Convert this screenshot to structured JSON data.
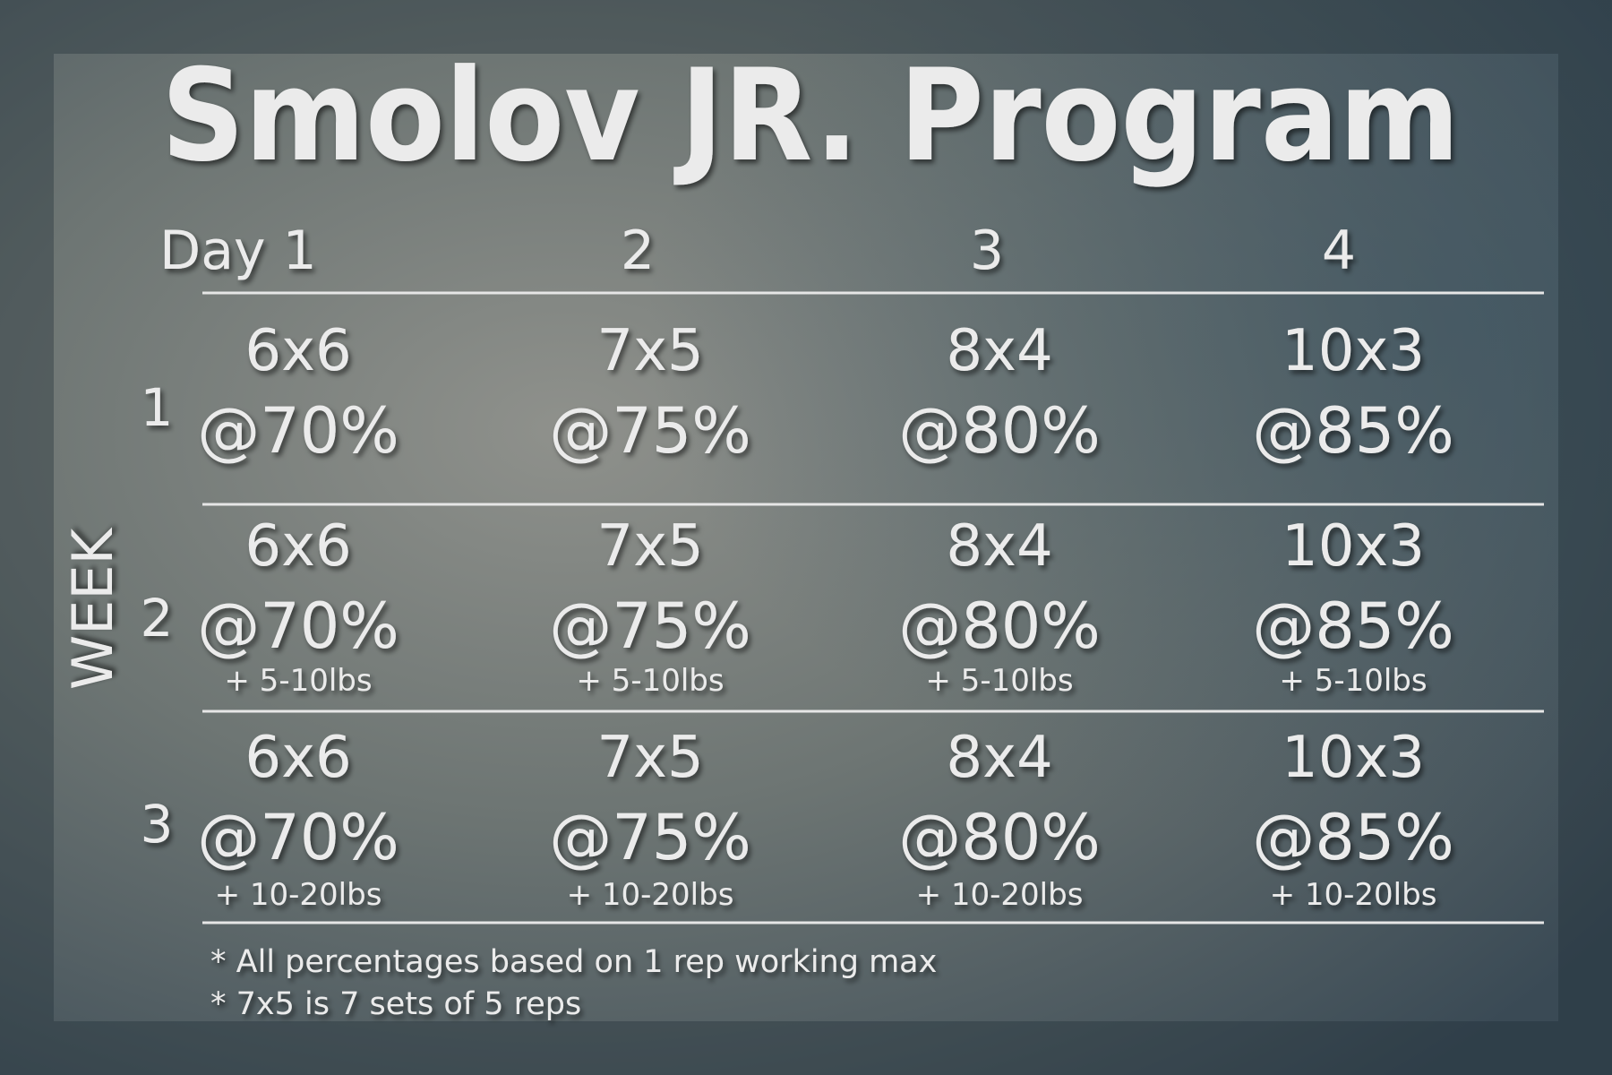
{
  "title": "Smolov JR. Program",
  "header": {
    "days": [
      "Day 1",
      "2",
      "3",
      "4"
    ]
  },
  "axis_label": "WEEK",
  "rows": [
    {
      "week": "1",
      "cells": [
        {
          "sets": "6x6",
          "percent": "@70%"
        },
        {
          "sets": "7x5",
          "percent": "@75%"
        },
        {
          "sets": "8x4",
          "percent": "@80%"
        },
        {
          "sets": "10x3",
          "percent": "@85%"
        }
      ]
    },
    {
      "week": "2",
      "cells": [
        {
          "sets": "6x6",
          "percent": "@70%",
          "increment": "+ 5-10lbs"
        },
        {
          "sets": "7x5",
          "percent": "@75%",
          "increment": "+ 5-10lbs"
        },
        {
          "sets": "8x4",
          "percent": "@80%",
          "increment": "+ 5-10lbs"
        },
        {
          "sets": "10x3",
          "percent": "@85%",
          "increment": "+ 5-10lbs"
        }
      ]
    },
    {
      "week": "3",
      "cells": [
        {
          "sets": "6x6",
          "percent": "@70%",
          "increment": "+ 10-20lbs"
        },
        {
          "sets": "7x5",
          "percent": "@75%",
          "increment": "+ 10-20lbs"
        },
        {
          "sets": "8x4",
          "percent": "@80%",
          "increment": "+ 10-20lbs"
        },
        {
          "sets": "10x3",
          "percent": "@85%",
          "increment": "+ 10-20lbs"
        }
      ]
    }
  ],
  "notes": [
    "* All percentages based on 1 rep working max",
    "* 7x5 is 7 sets of 5 reps"
  ]
}
